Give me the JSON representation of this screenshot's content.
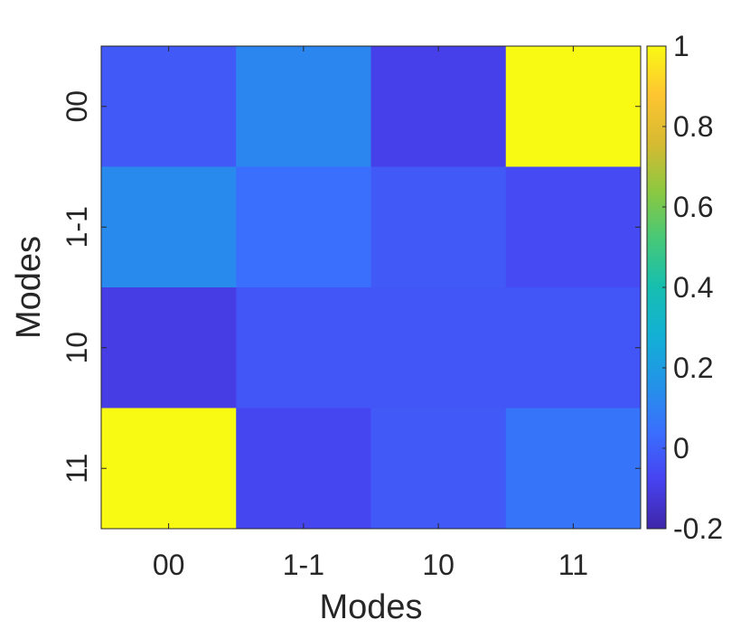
{
  "chart_data": {
    "type": "heatmap",
    "title": "",
    "xlabel": "Modes",
    "ylabel": "Modes",
    "x_categories": [
      "00",
      "1-1",
      "10",
      "11"
    ],
    "y_categories": [
      "00",
      "1-1",
      "10",
      "11"
    ],
    "values": [
      [
        -0.02,
        0.12,
        -0.09,
        1.0
      ],
      [
        0.13,
        0.04,
        -0.02,
        -0.06
      ],
      [
        -0.1,
        -0.03,
        -0.03,
        -0.03
      ],
      [
        1.0,
        -0.07,
        -0.02,
        0.06
      ]
    ],
    "colorbar": {
      "range": [
        -0.2,
        1
      ],
      "ticks": [
        -0.2,
        0,
        0.2,
        0.4,
        0.6,
        0.8,
        1
      ],
      "tick_labels": [
        "-0.2",
        "0",
        "0.2",
        "0.4",
        "0.6",
        "0.8",
        "1"
      ],
      "colormap": "parula"
    }
  }
}
